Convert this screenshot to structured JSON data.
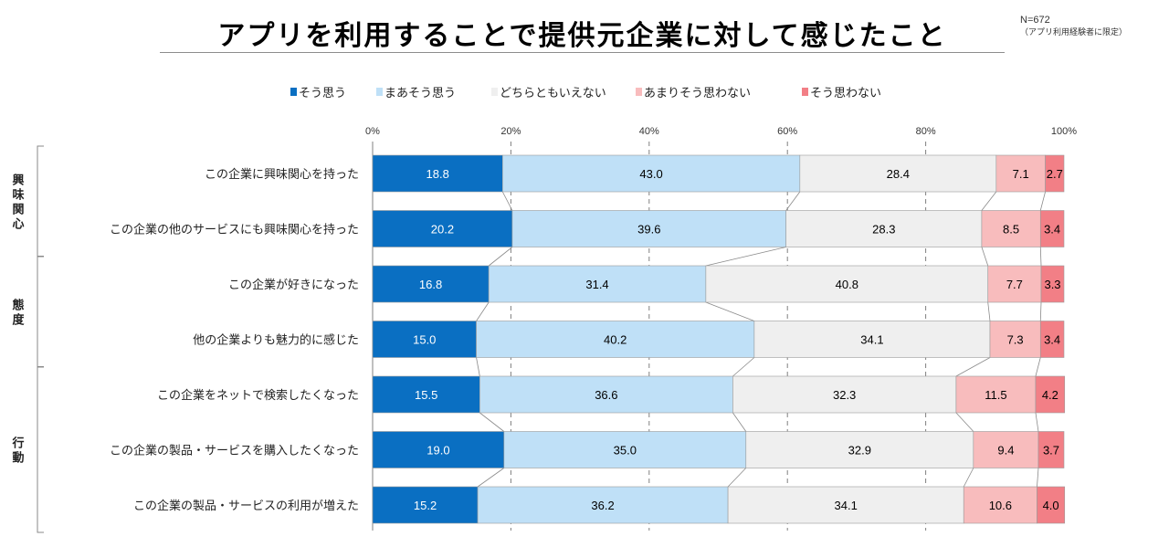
{
  "chart_data": {
    "type": "bar",
    "orientation": "horizontal",
    "stacked": true,
    "percent": true,
    "title": "アプリを利用することで提供元企業に対して感じたこと",
    "sample_size": "N=672",
    "sample_note": "（アプリ利用経験者に限定）",
    "xlim": [
      0,
      100
    ],
    "xticks": [
      "0%",
      "20%",
      "40%",
      "60%",
      "80%",
      "100%"
    ],
    "xtick_values": [
      0,
      20,
      40,
      60,
      80,
      100
    ],
    "legend_position": "top",
    "categories": [
      "この企業に興味関心を持った",
      "この企業の他のサービスにも興味関心を持った",
      "この企業が好きになった",
      "他の企業よりも魅力的に感じた",
      "この企業をネットで検索したくなった",
      "この企業の製品・サービスを購入したくなった",
      "この企業の製品・サービスの利用が増えた"
    ],
    "groups": [
      {
        "label": "興味関心",
        "start": 0,
        "end": 1
      },
      {
        "label": "態度",
        "start": 2,
        "end": 3
      },
      {
        "label": "行動",
        "start": 4,
        "end": 6
      }
    ],
    "series": [
      {
        "name": "そう思う",
        "color": "#0a6fc2",
        "label_color": "#ffffff",
        "values": [
          18.8,
          20.2,
          16.8,
          15.0,
          15.5,
          19.0,
          15.2
        ],
        "labels": [
          "18.8",
          "20.2",
          "16.8",
          "15.0",
          "15.5",
          "19.0",
          "15.2"
        ]
      },
      {
        "name": "まあそう思う",
        "color": "#bfe0f7",
        "label_color": "#000000",
        "values": [
          43.0,
          39.6,
          31.4,
          40.2,
          36.6,
          35.0,
          36.2
        ],
        "labels": [
          "43.0",
          "39.6",
          "31.4",
          "40.2",
          "36.6",
          "35.0",
          "36.2"
        ]
      },
      {
        "name": "どちらともいえない",
        "color": "#efefef",
        "label_color": "#000000",
        "values": [
          28.4,
          28.3,
          40.8,
          34.1,
          32.3,
          32.9,
          34.1
        ],
        "labels": [
          "28.4",
          "28.3",
          "40.8",
          "34.1",
          "32.3",
          "32.9",
          "34.1"
        ]
      },
      {
        "name": "あまりそう思わない",
        "color": "#f8bcbd",
        "label_color": "#000000",
        "values": [
          7.1,
          8.5,
          7.7,
          7.3,
          11.5,
          9.4,
          10.6
        ],
        "labels": [
          "7.1",
          "8.5",
          "7.7",
          "7.3",
          "11.5",
          "9.4",
          "10.6"
        ]
      },
      {
        "name": "そう思わない",
        "color": "#f27f86",
        "label_color": "#000000",
        "values": [
          2.7,
          3.4,
          3.3,
          3.4,
          4.2,
          3.7,
          4.0
        ],
        "labels": [
          "2.7",
          "3.4",
          "3.3",
          "3.4",
          "4.2",
          "3.7",
          "4.0"
        ]
      }
    ]
  }
}
